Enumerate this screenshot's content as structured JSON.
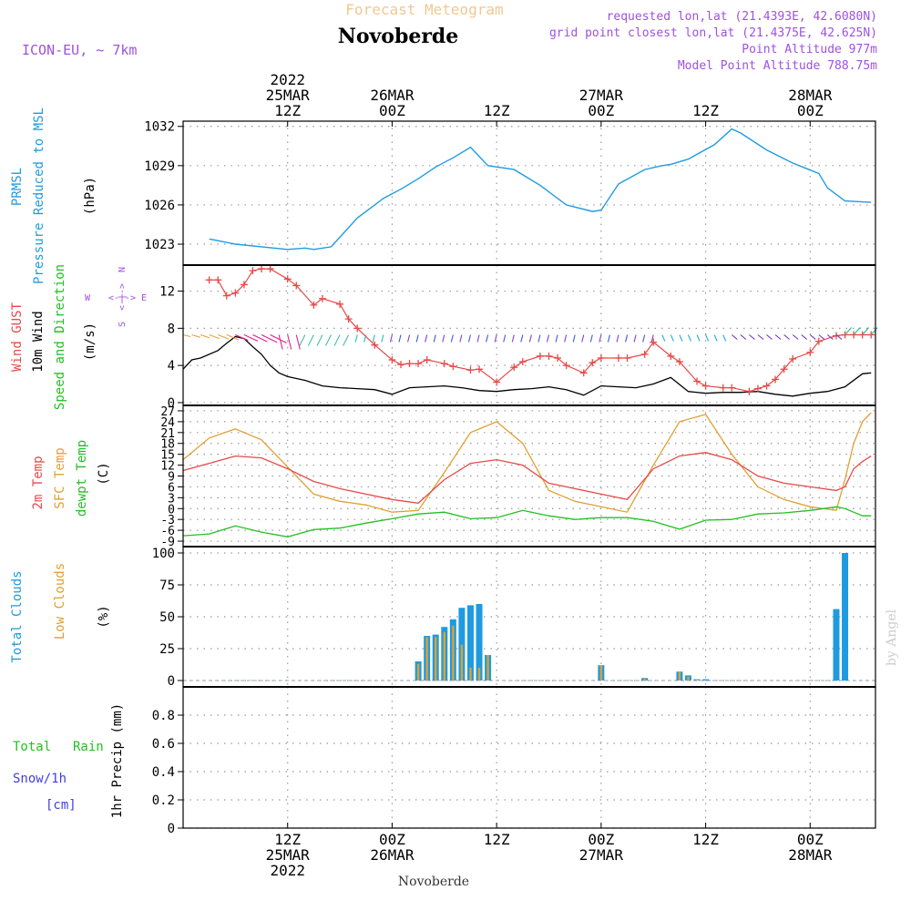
{
  "header": {
    "product_title": "Forecast Meteogram",
    "location_title": "Novoberde",
    "model_label": "ICON-EU, ~ 7km",
    "requested_coords": "requested lon,lat (21.4393E, 42.6080N)",
    "grid_coords": "grid point closest lon,lat (21.4375E, 42.625N)",
    "point_altitude": "Point Altitude 977m",
    "model_altitude": "Model Point Altitude 788.75m"
  },
  "time_axis": {
    "top_labels": [
      {
        "h": 12,
        "lines": [
          "2022",
          "25MAR",
          "12Z"
        ]
      },
      {
        "h": 24,
        "lines": [
          "26MAR",
          "00Z"
        ]
      },
      {
        "h": 36,
        "lines": [
          "12Z"
        ]
      },
      {
        "h": 48,
        "lines": [
          "27MAR",
          "00Z"
        ]
      },
      {
        "h": 60,
        "lines": [
          "12Z"
        ]
      },
      {
        "h": 72,
        "lines": [
          "28MAR",
          "00Z"
        ]
      }
    ],
    "bottom_labels": [
      {
        "h": 12,
        "lines": [
          "12Z",
          "25MAR",
          "2022"
        ]
      },
      {
        "h": 24,
        "lines": [
          "00Z",
          "26MAR"
        ]
      },
      {
        "h": 36,
        "lines": [
          "12Z"
        ]
      },
      {
        "h": 48,
        "lines": [
          "00Z",
          "27MAR"
        ]
      },
      {
        "h": 60,
        "lines": [
          "12Z"
        ]
      },
      {
        "h": 72,
        "lines": [
          "00Z",
          "28MAR"
        ]
      }
    ],
    "bottom_title": "Novoberde"
  },
  "watermark": "by Angel",
  "colors": {
    "pressure": "#1e9be0",
    "gust": "#e84848",
    "wind": "#000000",
    "temp": "#e84848",
    "sfc_temp": "#e0a030",
    "dewpt": "#22c022",
    "total_clouds": "#1e9be0",
    "low_clouds": "#e0a030",
    "rain": "#22c022",
    "snow": "#4040e0",
    "meta": "#a050e0",
    "title_orange": "#f0c890"
  },
  "panels": {
    "pressure": {
      "label1": "PRMSL",
      "label2": "Pressure Reduced to MSL",
      "unit": "(hPa)"
    },
    "wind": {
      "label_gust": "Wind GUST",
      "label_wind": "10m Wind",
      "label_dir": "Speed and Direction",
      "unit": "(m/s)",
      "compass_n": "N",
      "compass_s": "S",
      "compass_w": "W",
      "compass_e": "E",
      "compass_arrows": "<-|->"
    },
    "temp": {
      "label_temp": "2m Temp",
      "label_sfc": "SFC Temp",
      "label_dew": "dewpt Temp",
      "unit": "(C)"
    },
    "clouds": {
      "label_total": "Total Clouds",
      "label_low": "Low Clouds",
      "unit": "(%)"
    },
    "precip": {
      "label_total": "Total",
      "label_rain": "Rain",
      "label_snow": "Snow/1h",
      "label_cm": "[cm]",
      "label_unit": "1hr Precip (mm)"
    }
  },
  "chart_data": [
    {
      "type": "line",
      "name": "pressure",
      "x_hours": [
        3,
        6,
        9,
        12,
        14,
        15,
        17,
        20,
        23,
        25,
        27,
        29,
        31,
        33,
        35,
        38,
        41,
        44,
        47,
        48,
        50,
        53,
        55,
        56,
        58,
        61,
        63,
        64,
        67,
        70,
        73,
        74,
        76,
        79
      ],
      "y": [
        1023.4,
        1023.0,
        1022.8,
        1022.6,
        1022.7,
        1022.6,
        1022.8,
        1025.0,
        1026.5,
        1027.2,
        1028.0,
        1028.9,
        1029.6,
        1030.4,
        1029.0,
        1028.7,
        1027.5,
        1026.0,
        1025.5,
        1025.6,
        1027.6,
        1028.7,
        1029.0,
        1029.1,
        1029.5,
        1030.6,
        1031.8,
        1031.5,
        1030.2,
        1029.2,
        1028.4,
        1027.3,
        1026.3,
        1026.2
      ],
      "ylim": [
        1021.4,
        1032.4
      ],
      "yticks": [
        1023,
        1026,
        1029,
        1032
      ]
    },
    {
      "type": "line",
      "name": "wind",
      "gust_x": [
        3,
        4,
        5,
        6,
        7,
        8,
        9,
        10,
        12,
        13,
        15,
        16,
        18,
        19,
        20,
        22,
        24,
        25,
        26,
        27,
        28,
        30,
        31,
        33,
        34,
        36,
        38,
        39,
        41,
        42,
        43,
        44,
        46,
        47,
        48,
        50,
        51,
        53,
        54,
        56,
        57,
        59,
        60,
        62,
        63,
        65,
        66,
        67,
        68,
        69,
        70,
        72,
        73,
        75,
        76,
        77,
        78,
        79
      ],
      "gust_y": [
        13.2,
        13.2,
        11.5,
        11.8,
        12.7,
        14.2,
        14.4,
        14.4,
        13.3,
        12.6,
        10.5,
        11.2,
        10.6,
        9.0,
        8.0,
        6.2,
        4.6,
        4.1,
        4.2,
        4.2,
        4.6,
        4.2,
        3.9,
        3.5,
        3.6,
        2.2,
        3.8,
        4.4,
        5.0,
        5.0,
        4.8,
        4.0,
        3.2,
        4.3,
        4.8,
        4.8,
        4.8,
        5.2,
        6.5,
        5.0,
        4.4,
        2.3,
        1.8,
        1.6,
        1.6,
        1.2,
        1.5,
        1.8,
        2.5,
        3.6,
        4.7,
        5.4,
        6.6,
        7.2,
        7.3,
        7.3,
        7.3,
        7.3
      ],
      "wind_x": [
        0,
        1,
        2,
        4,
        5,
        6,
        7,
        8,
        9,
        10,
        11,
        12,
        14,
        16,
        18,
        20,
        22,
        24,
        26,
        28,
        30,
        32,
        34,
        36,
        38,
        40,
        42,
        44,
        46,
        48,
        50,
        52,
        54,
        56,
        58,
        60,
        62,
        64,
        66,
        68,
        70,
        72,
        74,
        76,
        78,
        79
      ],
      "wind_y": [
        3.6,
        4.6,
        4.8,
        5.6,
        6.4,
        7.1,
        6.9,
        6.0,
        5.2,
        4.0,
        3.2,
        2.8,
        2.4,
        1.8,
        1.6,
        1.5,
        1.4,
        0.9,
        1.6,
        1.7,
        1.8,
        1.6,
        1.3,
        1.2,
        1.4,
        1.5,
        1.7,
        1.4,
        0.8,
        1.8,
        1.7,
        1.6,
        2.0,
        2.7,
        1.2,
        1.0,
        1.1,
        1.1,
        1.2,
        0.9,
        0.7,
        1.0,
        1.2,
        1.7,
        3.1,
        3.2
      ],
      "ylim": [
        -0.3,
        14.8
      ],
      "yticks": [
        0,
        4,
        8,
        12
      ]
    },
    {
      "type": "line",
      "name": "temperature",
      "x_hours": [
        0,
        3,
        6,
        9,
        12,
        15,
        18,
        21,
        24,
        27,
        30,
        33,
        36,
        39,
        42,
        45,
        48,
        51,
        54,
        57,
        60,
        63,
        66,
        69,
        72,
        75,
        76,
        77,
        78,
        79
      ],
      "t2m": [
        10.5,
        12.5,
        14.5,
        14.0,
        11.0,
        7.5,
        5.5,
        4.0,
        2.5,
        1.5,
        8.0,
        12.5,
        13.5,
        12.0,
        7.0,
        5.5,
        4.0,
        2.5,
        11.0,
        14.5,
        15.5,
        13.5,
        9.0,
        7.0,
        6.0,
        5.0,
        6.0,
        11.0,
        13.0,
        14.5
      ],
      "t_sfc": [
        13.5,
        19.5,
        22.0,
        19.0,
        11.5,
        4.0,
        2.0,
        1.0,
        -1.0,
        -0.5,
        10.0,
        21.0,
        24.0,
        18.0,
        5.0,
        2.0,
        0.5,
        -1.0,
        12.0,
        24.0,
        26.0,
        15.0,
        6.0,
        2.5,
        0.5,
        -0.5,
        8.0,
        18.0,
        24.0,
        26.5
      ],
      "dewpt": [
        -7.5,
        -7.0,
        -4.8,
        -6.5,
        -7.8,
        -5.8,
        -5.4,
        -4.0,
        -2.8,
        -1.5,
        -1.0,
        -2.8,
        -2.5,
        -0.5,
        -2.0,
        -3.0,
        -2.5,
        -2.5,
        -3.5,
        -5.7,
        -3.2,
        -3.0,
        -1.5,
        -1.2,
        -0.5,
        0.5,
        0.0,
        -1.0,
        -2.0,
        -2.0
      ],
      "ylim": [
        -10.5,
        28.5
      ],
      "yticks": [
        -9,
        -6,
        -3,
        0,
        3,
        6,
        9,
        12,
        15,
        18,
        21,
        24,
        27
      ]
    },
    {
      "type": "bar",
      "name": "clouds",
      "x_hours": [
        27,
        28,
        29,
        30,
        31,
        32,
        33,
        34,
        35,
        48,
        53,
        57,
        58,
        59,
        60,
        75,
        76
      ],
      "total": [
        15,
        35,
        36,
        42,
        48,
        57,
        59,
        60,
        20,
        12,
        2,
        7,
        4,
        1,
        1,
        56,
        100
      ],
      "low": [
        13,
        34,
        34,
        38,
        43,
        28,
        10,
        10,
        20,
        12,
        2,
        7,
        3,
        1,
        0,
        0,
        0
      ],
      "ylim": [
        -5,
        105
      ],
      "yticks": [
        0,
        25,
        50,
        75,
        100
      ]
    },
    {
      "type": "bar",
      "name": "precip",
      "x_hours": [],
      "rain": [],
      "snow": [],
      "ylim": [
        0,
        1.0
      ],
      "yticks": [
        0,
        0.2,
        0.4,
        0.6,
        0.8
      ]
    }
  ]
}
